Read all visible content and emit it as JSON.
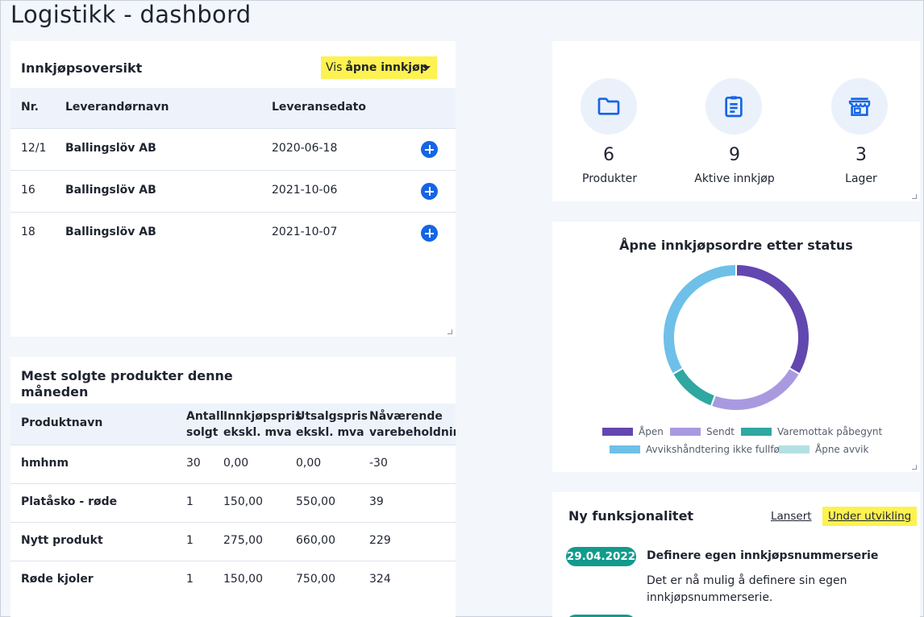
{
  "page": {
    "title": "Logistikk - dashbord"
  },
  "purchases": {
    "title": "Innkjøpsoversikt",
    "filter": {
      "prefix": "Vis",
      "value": "åpne innkjøp"
    },
    "columns": {
      "nr": "Nr.",
      "supplier": "Leverandørnavn",
      "date": "Leveransedato"
    },
    "rows": [
      {
        "nr": "12/1",
        "supplier": "Ballingslöv AB",
        "date": "2020-06-18"
      },
      {
        "nr": "16",
        "supplier": "Ballingslöv AB",
        "date": "2021-10-06"
      },
      {
        "nr": "18",
        "supplier": "Ballingslöv AB",
        "date": "2021-10-07"
      }
    ]
  },
  "bestsellers": {
    "title_line1": "Mest solgte produkter denne",
    "title_line2": "måneden",
    "columns": {
      "name": "Produktnavn",
      "qty_1": "Antall",
      "qty_2": "solgt",
      "buy_1": "Innkjøpspris",
      "buy_2": "ekskl. mva",
      "sell_1": "Utsalgspris",
      "sell_2": "ekskl. mva",
      "stock_1": "Nåværende",
      "stock_2": "varebeholdning"
    },
    "rows": [
      {
        "name": "hmhnm",
        "qty": "30",
        "buy": "0,00",
        "sell": "0,00",
        "stock": "-30"
      },
      {
        "name": "Platåsko - røde",
        "qty": "1",
        "buy": "150,00",
        "sell": "550,00",
        "stock": "39"
      },
      {
        "name": "Nytt produkt",
        "qty": "1",
        "buy": "275,00",
        "sell": "660,00",
        "stock": "229"
      },
      {
        "name": "Røde kjoler",
        "qty": "1",
        "buy": "150,00",
        "sell": "750,00",
        "stock": "324"
      }
    ]
  },
  "stats": {
    "items": [
      {
        "icon": "folder-icon",
        "value": "6",
        "label": "Produkter"
      },
      {
        "icon": "clipboard-icon",
        "value": "9",
        "label": "Aktive innkjøp"
      },
      {
        "icon": "store-icon",
        "value": "3",
        "label": "Lager"
      }
    ]
  },
  "chart": {
    "title": "Åpne innkjøpsordre etter status"
  },
  "chart_data": {
    "type": "pie",
    "title": "Åpne innkjøpsordre etter status",
    "legend_position": "bottom",
    "categories": [
      "Åpen",
      "Sendt",
      "Varemottak påbegynt",
      "Avvikshåndtering ikke fullført",
      "Åpne avvik"
    ],
    "values": [
      3,
      2,
      1,
      3,
      0
    ],
    "colors": [
      "#6247b0",
      "#a99ae0",
      "#2ea8a1",
      "#6ec0e8",
      "#b3e0e3"
    ],
    "donut": true
  },
  "news": {
    "title": "Ny funksjonalitet",
    "tabs": {
      "launched": "Lansert",
      "in_dev": "Under utvikling"
    },
    "items": [
      {
        "date": "29.04.2022",
        "headline": "Definere egen innkjøpsnummerserie",
        "body_line1": "Det er nå mulig å definere sin egen",
        "body_line2": "innkjøpsnummerserie."
      }
    ]
  }
}
